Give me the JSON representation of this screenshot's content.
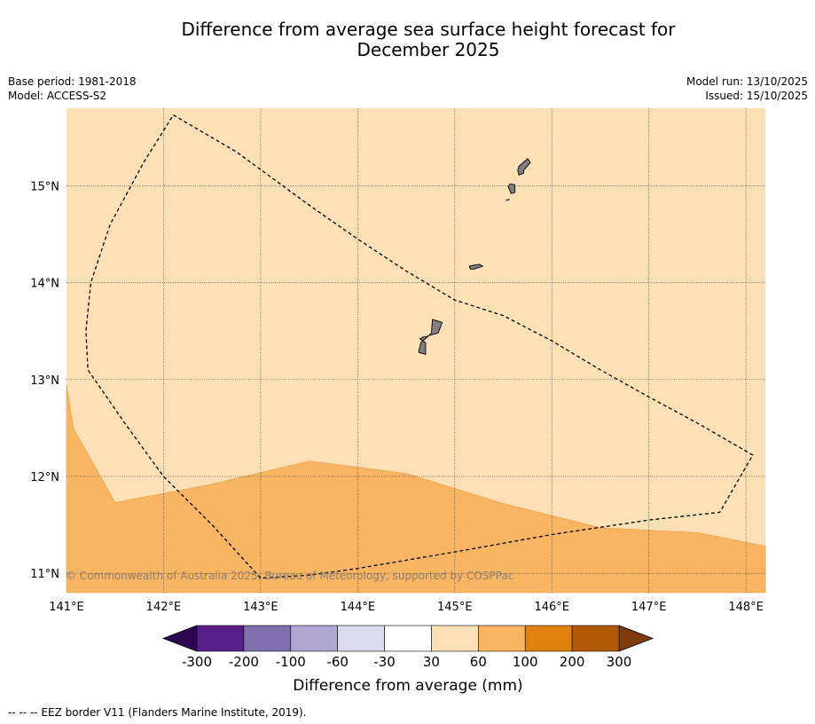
{
  "header": {
    "title_line1": "Difference from average sea surface height forecast for",
    "title_line2": "December 2025",
    "base_period": "Base period: 1981-2018",
    "model": "Model: ACCESS-S2",
    "model_run": "Model run: 13/10/2025",
    "issued": "Issued: 15/10/2025"
  },
  "map": {
    "copyright": "© Commonwealth of Australia 2025, Bureau of Meteorology, supported by COSPPac"
  },
  "chart_data": {
    "type": "heatmap",
    "title": "Difference from average sea surface height forecast for December 2025",
    "lon_range": [
      141.0,
      148.2
    ],
    "lat_range": [
      10.8,
      15.8
    ],
    "x_ticks": [
      141,
      142,
      143,
      144,
      145,
      146,
      147,
      148
    ],
    "x_tick_labels": [
      "141°E",
      "142°E",
      "143°E",
      "144°E",
      "145°E",
      "146°E",
      "147°E",
      "148°E"
    ],
    "y_ticks": [
      11,
      12,
      13,
      14,
      15
    ],
    "y_tick_labels": [
      "11°N",
      "12°N",
      "13°N",
      "14°N",
      "15°N"
    ],
    "regions": [
      {
        "name": "30 to 60 mm",
        "color": "#fde0b6"
      },
      {
        "name": "60 to 100 mm",
        "color": "#f9b562",
        "boundary": [
          [
            141.0,
            12.95
          ],
          [
            141.07,
            12.5
          ],
          [
            141.5,
            11.73
          ],
          [
            142.5,
            11.92
          ],
          [
            143.5,
            12.16
          ],
          [
            144.5,
            12.03
          ],
          [
            145.5,
            11.72
          ],
          [
            146.5,
            11.47
          ],
          [
            147.5,
            11.42
          ],
          [
            148.2,
            11.28
          ]
        ]
      }
    ],
    "eez_border": [
      [
        142.1,
        15.73
      ],
      [
        142.75,
        15.35
      ],
      [
        143.5,
        14.8
      ],
      [
        144.0,
        14.45
      ],
      [
        144.5,
        14.12
      ],
      [
        145.0,
        13.82
      ],
      [
        145.5,
        13.66
      ],
      [
        146.0,
        13.4
      ],
      [
        146.5,
        13.1
      ],
      [
        147.0,
        12.82
      ],
      [
        147.5,
        12.55
      ],
      [
        148.07,
        12.22
      ],
      [
        147.73,
        11.63
      ],
      [
        147.0,
        11.55
      ],
      [
        146.0,
        11.4
      ],
      [
        145.0,
        11.22
      ],
      [
        144.0,
        11.05
      ],
      [
        143.5,
        10.98
      ],
      [
        143.0,
        10.95
      ],
      [
        142.5,
        11.5
      ],
      [
        142.0,
        12.0
      ],
      [
        141.6,
        12.55
      ],
      [
        141.22,
        13.1
      ],
      [
        141.2,
        13.5
      ],
      [
        141.25,
        14.0
      ],
      [
        141.45,
        14.6
      ],
      [
        141.8,
        15.25
      ],
      [
        142.1,
        15.73
      ]
    ],
    "land": [
      {
        "name": "Guam",
        "points": [
          [
            144.77,
            13.62
          ],
          [
            144.87,
            13.59
          ],
          [
            144.83,
            13.48
          ],
          [
            144.72,
            13.45
          ],
          [
            144.72,
            13.44
          ],
          [
            144.65,
            13.38
          ],
          [
            144.63,
            13.3
          ],
          [
            144.63,
            13.28
          ],
          [
            144.7,
            13.26
          ],
          [
            144.7,
            13.38
          ],
          [
            144.64,
            13.42
          ],
          [
            144.68,
            13.44
          ],
          [
            144.72,
            13.44
          ],
          [
            144.76,
            13.48
          ]
        ]
      },
      {
        "name": "Rota",
        "points": [
          [
            145.15,
            14.17
          ],
          [
            145.25,
            14.19
          ],
          [
            145.29,
            14.17
          ],
          [
            145.2,
            14.14
          ],
          [
            145.16,
            14.14
          ]
        ]
      },
      {
        "name": "Tinian",
        "points": [
          [
            145.57,
            15.02
          ],
          [
            145.62,
            15.01
          ],
          [
            145.62,
            14.93
          ],
          [
            145.58,
            14.92
          ],
          [
            145.55,
            14.99
          ]
        ]
      },
      {
        "name": "Saipan",
        "points": [
          [
            145.66,
            15.2
          ],
          [
            145.75,
            15.28
          ],
          [
            145.78,
            15.24
          ],
          [
            145.71,
            15.16
          ],
          [
            145.71,
            15.13
          ],
          [
            145.66,
            15.11
          ],
          [
            145.65,
            15.16
          ]
        ]
      },
      {
        "name": "Aguijan",
        "points": [
          [
            145.53,
            14.85
          ],
          [
            145.56,
            14.86
          ],
          [
            145.55,
            14.85
          ]
        ]
      }
    ],
    "colorbar": {
      "label": "Difference from average (mm)",
      "ticks": [
        "-300",
        "-200",
        "-100",
        "-60",
        "-30",
        "30",
        "60",
        "100",
        "200",
        "300"
      ],
      "colors": [
        "#581f8b",
        "#8070b0",
        "#b0a6d2",
        "#dbdbec",
        "#ffffff",
        "#fde0b6",
        "#f9b562",
        "#e0800f",
        "#b15807"
      ],
      "under_color": "#2d0452",
      "over_color": "#7f3c0b"
    },
    "legend_note": "--  --  -- EEZ border V11 (Flanders Marine Institute, 2019)."
  }
}
